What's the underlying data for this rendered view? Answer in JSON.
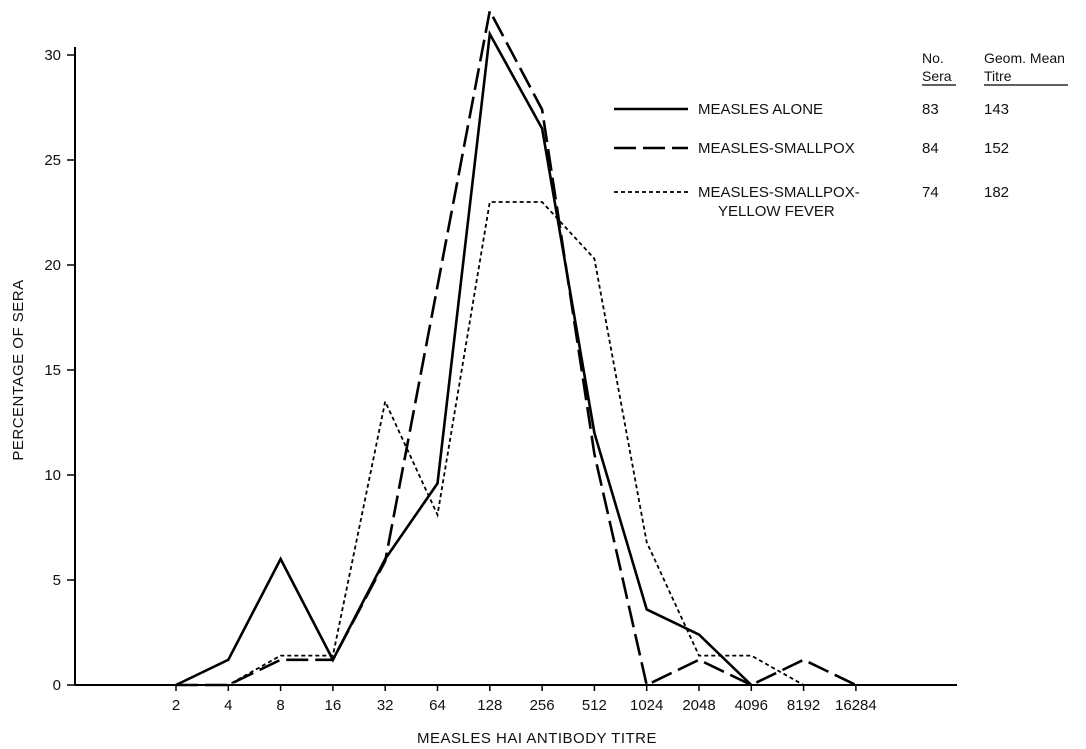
{
  "chart_data": {
    "type": "line",
    "title": "",
    "xlabel": "MEASLES HAI ANTIBODY TITRE",
    "ylabel": "PERCENTAGE OF SERA",
    "categories": [
      "2",
      "4",
      "8",
      "16",
      "32",
      "64",
      "128",
      "256",
      "512",
      "1024",
      "2048",
      "4096",
      "8192",
      "16284"
    ],
    "ylim": [
      0,
      30
    ],
    "yticks": [
      0,
      5,
      10,
      15,
      20,
      25,
      30
    ],
    "grid": false,
    "legend_position": "top-right",
    "legend_headers": {
      "no_sera": [
        "No.",
        "Sera"
      ],
      "mean_titre": [
        "Geom. Mean",
        "Titre"
      ]
    },
    "series": [
      {
        "name": "MEASLES ALONE",
        "label_lines": [
          "MEASLES ALONE"
        ],
        "no_sera": "83",
        "mean_titre": "143",
        "style": "solid",
        "values": [
          0,
          1.2,
          6.0,
          1.2,
          6.0,
          9.6,
          31.0,
          26.5,
          12.0,
          3.6,
          2.4,
          0,
          null,
          null
        ]
      },
      {
        "name": "MEASLES-SMALLPOX",
        "label_lines": [
          "MEASLES-SMALLPOX"
        ],
        "no_sera": "84",
        "mean_titre": "152",
        "style": "dashed",
        "values": [
          0,
          0,
          1.2,
          1.2,
          5.9,
          19.0,
          32.1,
          27.4,
          11.0,
          0,
          1.2,
          0,
          1.2,
          0
        ]
      },
      {
        "name": "MEASLES-SMALLPOX-YELLOW FEVER",
        "label_lines": [
          "MEASLES-SMALLPOX-",
          "YELLOW FEVER"
        ],
        "no_sera": "74",
        "mean_titre": "182",
        "style": "dotted",
        "values": [
          0,
          0,
          1.4,
          1.4,
          13.5,
          8.1,
          23.0,
          23.0,
          20.3,
          6.8,
          1.4,
          1.4,
          0,
          0
        ]
      }
    ]
  }
}
